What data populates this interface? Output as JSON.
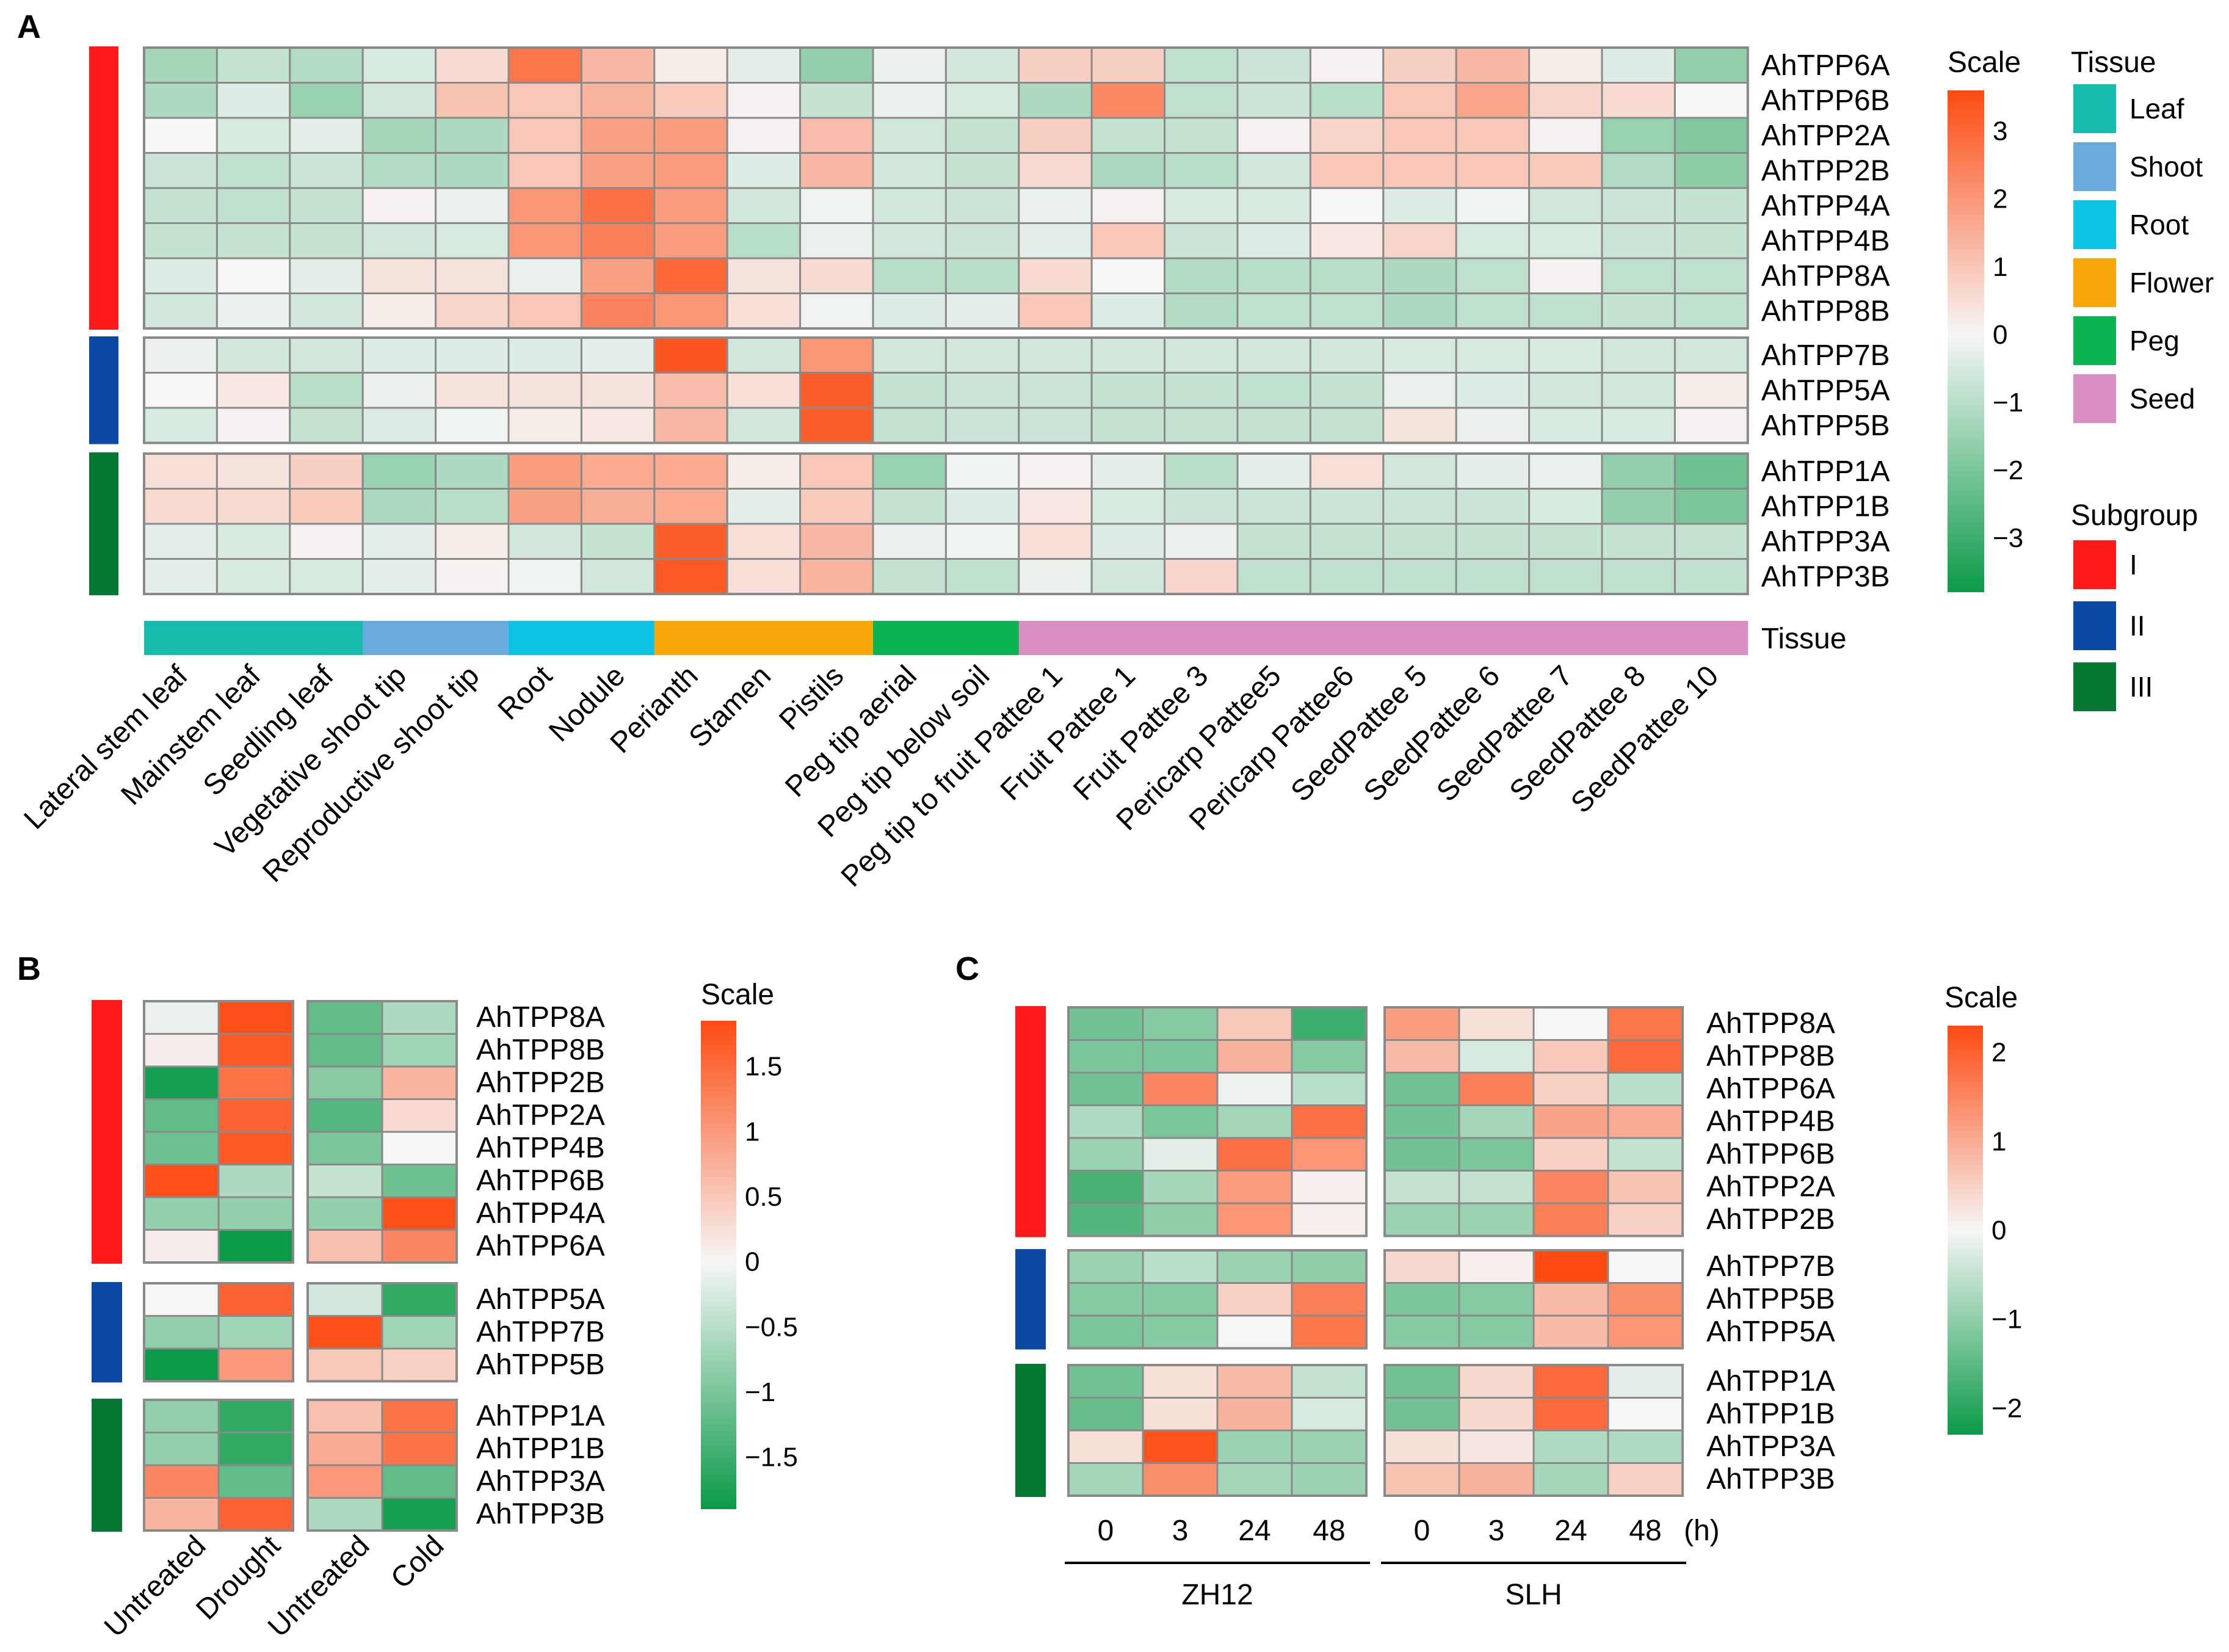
{
  "colors": {
    "low": "#0b9a48",
    "mid": "#f6f6f6",
    "high": "#fd4b12",
    "subgroup": {
      "I": "#ff1a1a",
      "II": "#0b49a5",
      "III": "#077834"
    },
    "tissue": {
      "Leaf": "#17bbab",
      "Shoot": "#6aaade",
      "Root": "#0cc3e6",
      "Flower": "#f7a707",
      "Peg": "#0ab450",
      "Seed": "#d98fc2"
    }
  },
  "chart_data": [
    {
      "type": "heatmap",
      "panel": "A",
      "scale_title": "Scale",
      "vmin": -3.8,
      "vmax": 3.6,
      "scale_ticks": [
        3,
        2,
        1,
        0,
        -1,
        -2,
        -3
      ],
      "scale_tick_labels": [
        "3",
        "2",
        "1",
        "0",
        "−1",
        "−2",
        "−3"
      ],
      "columns": [
        "Lateral stem leaf",
        "Mainstem leaf",
        "Seedling leaf",
        "Vegetative shoot tip",
        "Reproductive shoot tip",
        "Root",
        "Nodule",
        "Perianth",
        "Stamen",
        "Pistils",
        "Peg tip aerial",
        "Peg tip below soil",
        "Peg tip to fruit Pattee 1",
        "Fruit Pattee 1",
        "Fruit Pattee 3",
        "Pericarp Pattee5",
        "Pericarp Pattee6",
        "SeedPattee 5",
        "SeedPattee 6",
        "SeedPattee 7",
        "SeedPattee 8",
        "SeedPattee 10"
      ],
      "tissue_label": "Tissue",
      "tissue_bar": [
        "Leaf",
        "Leaf",
        "Leaf",
        "Shoot",
        "Shoot",
        "Root",
        "Root",
        "Flower",
        "Flower",
        "Flower",
        "Peg",
        "Peg",
        "Seed",
        "Seed",
        "Seed",
        "Seed",
        "Seed",
        "Seed",
        "Seed",
        "Seed",
        "Seed",
        "Seed"
      ],
      "blocks": [
        {
          "subgroup": "I",
          "rows": [
            "AhTPP6A",
            "AhTPP6B",
            "AhTPP2A",
            "AhTPP2B",
            "AhTPP4A",
            "AhTPP4B",
            "AhTPP8A",
            "AhTPP8B"
          ],
          "values": [
            [
              -1.3,
              -0.8,
              -1.1,
              -0.5,
              0.6,
              2.7,
              1.3,
              0.2,
              -0.3,
              -1.6,
              -0.2,
              -0.6,
              0.8,
              0.8,
              -0.9,
              -0.7,
              0.1,
              0.8,
              1.3,
              0.2,
              -0.4,
              -1.6
            ],
            [
              -1.2,
              -0.4,
              -1.5,
              -0.6,
              1.1,
              1.0,
              1.4,
              0.9,
              0.1,
              -0.8,
              -0.2,
              -0.5,
              -1.2,
              2.3,
              -0.9,
              -0.7,
              -1.0,
              1.0,
              1.7,
              0.7,
              0.6,
              0.0
            ],
            [
              0.0,
              -0.5,
              -0.3,
              -1.3,
              -1.2,
              1.0,
              1.8,
              1.9,
              0.1,
              1.2,
              -0.6,
              -0.8,
              0.8,
              -0.8,
              -0.8,
              0.1,
              0.7,
              1.0,
              1.0,
              0.1,
              -1.5,
              -1.9
            ],
            [
              -0.7,
              -0.9,
              -0.7,
              -1.1,
              -1.2,
              1.0,
              1.8,
              1.9,
              -0.4,
              1.3,
              -0.6,
              -0.8,
              0.6,
              -1.2,
              -1.0,
              -0.6,
              1.0,
              1.0,
              1.0,
              0.9,
              -1.1,
              -1.7
            ],
            [
              -0.8,
              -0.9,
              -0.8,
              0.1,
              -0.2,
              2.0,
              2.8,
              1.9,
              -0.6,
              -0.1,
              -0.6,
              -0.7,
              -0.2,
              0.1,
              -0.5,
              -0.5,
              0.0,
              -0.4,
              -0.1,
              -0.6,
              -0.7,
              -0.8
            ],
            [
              -0.8,
              -0.8,
              -0.8,
              -0.6,
              -0.5,
              2.0,
              2.5,
              1.9,
              -1.0,
              -0.2,
              -0.6,
              -0.7,
              -0.3,
              1.0,
              -0.7,
              -0.4,
              0.3,
              0.7,
              -0.5,
              -0.5,
              -0.7,
              -0.8
            ],
            [
              -0.4,
              0.0,
              -0.3,
              0.4,
              0.4,
              -0.2,
              1.8,
              3.0,
              0.4,
              0.6,
              -1.0,
              -1.0,
              0.6,
              0.0,
              -1.1,
              -1.0,
              -1.0,
              -1.2,
              -0.9,
              0.1,
              -0.9,
              -0.9
            ],
            [
              -0.6,
              -0.2,
              -0.6,
              0.2,
              0.7,
              1.0,
              2.4,
              2.0,
              0.5,
              -0.1,
              -0.4,
              -0.3,
              1.0,
              -0.4,
              -1.1,
              -0.9,
              -0.9,
              -1.2,
              -0.9,
              -0.9,
              -0.8,
              -0.9
            ]
          ]
        },
        {
          "subgroup": "II",
          "rows": [
            "AhTPP7B",
            "AhTPP5A",
            "AhTPP5B"
          ],
          "values": [
            [
              -0.2,
              -0.6,
              -0.6,
              -0.4,
              -0.4,
              -0.4,
              -0.3,
              3.4,
              -0.6,
              2.0,
              -0.6,
              -0.6,
              -0.6,
              -0.6,
              -0.6,
              -0.6,
              -0.6,
              -0.5,
              -0.5,
              -0.5,
              -0.6,
              -0.6
            ],
            [
              0.0,
              0.3,
              -1.0,
              -0.2,
              0.4,
              0.4,
              0.4,
              1.2,
              0.5,
              3.2,
              -0.8,
              -0.7,
              -0.7,
              -0.8,
              -0.8,
              -0.9,
              -0.8,
              -0.2,
              -0.4,
              -0.6,
              -0.6,
              0.2
            ],
            [
              -0.5,
              0.1,
              -0.8,
              -0.4,
              -0.1,
              0.2,
              0.3,
              1.3,
              -0.6,
              3.2,
              -0.8,
              -0.7,
              -0.7,
              -0.8,
              -0.8,
              -0.8,
              -0.8,
              0.4,
              -0.2,
              -0.5,
              -0.5,
              0.1
            ]
          ]
        },
        {
          "subgroup": "III",
          "rows": [
            "AhTPP1A",
            "AhTPP1B",
            "AhTPP3A",
            "AhTPP3B"
          ],
          "values": [
            [
              0.5,
              0.4,
              0.8,
              -1.5,
              -1.2,
              1.9,
              1.6,
              1.6,
              0.2,
              1.0,
              -1.5,
              -0.1,
              0.1,
              -0.3,
              -1.0,
              -0.3,
              0.5,
              -0.6,
              -0.3,
              -0.2,
              -1.6,
              -2.2
            ],
            [
              0.6,
              0.6,
              0.9,
              -1.2,
              -1.0,
              1.8,
              1.5,
              1.6,
              -0.3,
              0.9,
              -0.8,
              -0.4,
              0.3,
              -0.5,
              -0.7,
              -0.7,
              -0.7,
              -0.7,
              -0.7,
              -0.5,
              -1.6,
              -2.0
            ],
            [
              -0.3,
              -0.5,
              0.1,
              -0.3,
              0.2,
              -0.6,
              -0.8,
              3.2,
              0.5,
              1.3,
              -0.2,
              -0.1,
              0.5,
              -0.4,
              -0.2,
              -0.8,
              -0.8,
              -0.8,
              -0.8,
              -0.8,
              -0.8,
              -0.8
            ],
            [
              -0.3,
              -0.5,
              -0.5,
              -0.3,
              0.1,
              -0.1,
              -0.6,
              3.3,
              0.5,
              1.4,
              -0.8,
              -0.9,
              -0.2,
              -0.6,
              0.7,
              -0.9,
              -0.9,
              -0.9,
              -0.9,
              -0.9,
              -0.9,
              -0.9
            ]
          ]
        }
      ]
    },
    {
      "type": "heatmap",
      "panel": "B",
      "scale_title": "Scale",
      "vmin": -1.9,
      "vmax": 1.85,
      "scale_ticks": [
        1.5,
        1,
        0.5,
        0,
        -0.5,
        -1,
        -1.5
      ],
      "scale_tick_labels": [
        "1.5",
        "1",
        "0.5",
        "0",
        "−0.5",
        "−1",
        "−1.5"
      ],
      "groups": [
        {
          "columns": [
            "Untreated",
            "Drought"
          ]
        },
        {
          "columns": [
            "Untreated",
            "Cold"
          ]
        }
      ],
      "blocks": [
        {
          "subgroup": "I",
          "rows": [
            "AhTPP8A",
            "AhTPP8B",
            "AhTPP2B",
            "AhTPP2A",
            "AhTPP4B",
            "AhTPP6B",
            "AhTPP4A",
            "AhTPP6A"
          ],
          "values": [
            [
              -0.1,
              1.8,
              -1.2,
              -0.6
            ],
            [
              0.1,
              1.7,
              -1.2,
              -0.7
            ],
            [
              -1.8,
              1.4,
              -0.9,
              0.7
            ],
            [
              -1.2,
              1.6,
              -1.3,
              0.3
            ],
            [
              -1.1,
              1.7,
              -1.0,
              0.0
            ],
            [
              1.8,
              -0.6,
              -0.4,
              -1.1
            ],
            [
              -0.8,
              -0.8,
              -0.8,
              1.8
            ],
            [
              0.1,
              -1.9,
              0.6,
              1.2
            ]
          ]
        },
        {
          "subgroup": "II",
          "rows": [
            "AhTPP5A",
            "AhTPP7B",
            "AhTPP5B"
          ],
          "values": [
            [
              0.0,
              1.6,
              -0.3,
              -1.6
            ],
            [
              -0.8,
              -0.7,
              1.8,
              -0.7
            ],
            [
              -1.9,
              1.0,
              0.5,
              0.4
            ]
          ]
        },
        {
          "subgroup": "III",
          "rows": [
            "AhTPP1A",
            "AhTPP1B",
            "AhTPP3A",
            "AhTPP3B"
          ],
          "values": [
            [
              -0.8,
              -1.6,
              0.6,
              1.4
            ],
            [
              -0.8,
              -1.6,
              0.8,
              1.4
            ],
            [
              1.2,
              -1.2,
              1.0,
              -1.2
            ],
            [
              0.7,
              1.6,
              -0.6,
              -1.8
            ]
          ]
        }
      ]
    },
    {
      "type": "heatmap",
      "panel": "C",
      "scale_title": "Scale",
      "vmin": -2.3,
      "vmax": 2.3,
      "scale_ticks": [
        2,
        1,
        0,
        -1,
        -2
      ],
      "scale_tick_labels": [
        "2",
        "1",
        "0",
        "−1",
        "−2"
      ],
      "time_points": [
        "0",
        "3",
        "24",
        "48"
      ],
      "time_unit": "(h)",
      "groups": [
        {
          "name": "ZH12"
        },
        {
          "name": "SLH"
        }
      ],
      "blocks": [
        {
          "subgroup": "I",
          "rows": [
            "AhTPP8A",
            "AhTPP8B",
            "AhTPP6A",
            "AhTPP4B",
            "AhTPP6B",
            "AhTPP2A",
            "AhTPP2B"
          ],
          "values": [
            [
              -1.3,
              -1.1,
              0.6,
              -1.8,
              1.2,
              0.3,
              0.0,
              1.7
            ],
            [
              -1.2,
              -1.2,
              0.9,
              -1.1,
              0.8,
              -0.3,
              0.6,
              1.9
            ],
            [
              -1.3,
              1.5,
              -0.1,
              -0.6,
              -1.3,
              1.6,
              0.5,
              -0.6
            ],
            [
              -0.7,
              -1.2,
              -0.8,
              1.8,
              -1.3,
              -0.8,
              1.1,
              1.0
            ],
            [
              -0.9,
              -0.2,
              1.8,
              1.3,
              -1.3,
              -1.2,
              0.5,
              -0.5
            ],
            [
              -1.7,
              -0.8,
              1.2,
              0.1,
              -0.5,
              -0.5,
              1.5,
              0.7
            ],
            [
              -1.6,
              -1.0,
              1.3,
              0.1,
              -0.9,
              -0.9,
              1.6,
              0.5
            ]
          ]
        },
        {
          "subgroup": "II",
          "rows": [
            "AhTPP7B",
            "AhTPP5B",
            "AhTPP5A"
          ],
          "values": [
            [
              -0.9,
              -0.6,
              -0.9,
              -1.0,
              0.4,
              0.1,
              2.3,
              0.0
            ],
            [
              -1.1,
              -1.1,
              0.5,
              1.6,
              -1.2,
              -1.1,
              0.8,
              1.4
            ],
            [
              -1.2,
              -1.1,
              0.0,
              1.7,
              -1.1,
              -1.1,
              0.8,
              1.3
            ]
          ]
        },
        {
          "subgroup": "III",
          "rows": [
            "AhTPP1A",
            "AhTPP1B",
            "AhTPP3A",
            "AhTPP3B"
          ],
          "values": [
            [
              -1.3,
              0.3,
              0.8,
              -0.5,
              -1.3,
              0.4,
              1.9,
              -0.2
            ],
            [
              -1.4,
              0.3,
              0.9,
              -0.3,
              -1.3,
              0.4,
              1.9,
              0.0
            ],
            [
              0.3,
              2.2,
              -0.9,
              -0.9,
              0.3,
              0.2,
              -0.7,
              -0.7
            ],
            [
              -0.8,
              1.4,
              -0.8,
              -0.9,
              0.7,
              0.9,
              -0.8,
              0.5
            ]
          ]
        }
      ]
    }
  ],
  "panel_labels": {
    "a": "A",
    "b": "B",
    "c": "C"
  },
  "legend": {
    "tissue_title": "Tissue",
    "tissue_items": [
      "Leaf",
      "Shoot",
      "Root",
      "Flower",
      "Peg",
      "Seed"
    ],
    "subgroup_title": "Subgroup",
    "subgroup_items": [
      "I",
      "II",
      "III"
    ]
  }
}
